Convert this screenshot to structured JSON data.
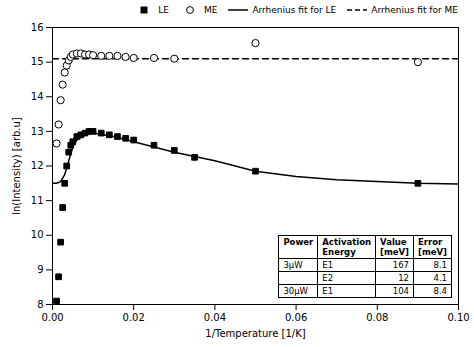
{
  "chart_data": {
    "type": "scatter",
    "xlabel": "1/Temperature [1/K]",
    "ylabel": "ln(Intensity) [arb.u]",
    "xlim": [
      0,
      0.1
    ],
    "ylim": [
      8,
      16
    ],
    "xticks": [
      {
        "value": 0,
        "label": "0.00"
      },
      {
        "value": 0.02,
        "label": "0.02"
      },
      {
        "value": 0.04,
        "label": "0.04"
      },
      {
        "value": 0.06,
        "label": "0.06"
      },
      {
        "value": 0.08,
        "label": "0.08"
      },
      {
        "value": 0.1,
        "label": "0.10"
      }
    ],
    "yticks": [
      8,
      9,
      10,
      11,
      12,
      13,
      14,
      15,
      16
    ],
    "legend": "upper right",
    "series": [
      {
        "name": "LE",
        "type": "scatter",
        "marker": "filled_square",
        "color": "black",
        "x": [
          0.001,
          0.0015,
          0.002,
          0.0025,
          0.003,
          0.0035,
          0.004,
          0.0045,
          0.005,
          0.006,
          0.007,
          0.008,
          0.009,
          0.01,
          0.012,
          0.014,
          0.016,
          0.018,
          0.02,
          0.025,
          0.03,
          0.035,
          0.05,
          0.09
        ],
        "values": [
          8.1,
          8.8,
          9.8,
          10.8,
          11.5,
          12.0,
          12.4,
          12.6,
          12.7,
          12.85,
          12.9,
          12.95,
          13.0,
          13.0,
          12.95,
          12.9,
          12.85,
          12.8,
          12.75,
          12.6,
          12.45,
          12.25,
          11.85,
          11.5
        ]
      },
      {
        "name": "ME",
        "type": "scatter",
        "marker": "open_circle",
        "color": "black",
        "x": [
          0.001,
          0.0015,
          0.002,
          0.0025,
          0.003,
          0.0035,
          0.004,
          0.0045,
          0.005,
          0.006,
          0.007,
          0.008,
          0.009,
          0.01,
          0.012,
          0.014,
          0.016,
          0.018,
          0.02,
          0.025,
          0.03,
          0.05,
          0.09
        ],
        "values": [
          12.65,
          13.2,
          13.9,
          14.35,
          14.7,
          14.9,
          15.05,
          15.15,
          15.22,
          15.25,
          15.25,
          15.22,
          15.22,
          15.2,
          15.18,
          15.18,
          15.18,
          15.15,
          15.12,
          15.12,
          15.1,
          15.55,
          15.0
        ]
      },
      {
        "name": "Arrhenius fit for LE",
        "type": "line",
        "line_style": "solid",
        "color": "black",
        "x": [
          0.0,
          0.001,
          0.002,
          0.003,
          0.004,
          0.005,
          0.006,
          0.008,
          0.01,
          0.015,
          0.02,
          0.03,
          0.04,
          0.05,
          0.06,
          0.07,
          0.08,
          0.09,
          0.1
        ],
        "values": [
          11.5,
          11.5,
          11.55,
          11.75,
          12.15,
          12.55,
          12.75,
          12.9,
          12.95,
          12.85,
          12.7,
          12.4,
          12.15,
          11.85,
          11.7,
          11.6,
          11.55,
          11.5,
          11.48
        ]
      },
      {
        "name": "Arrhenius fit for ME",
        "type": "line",
        "line_style": "dashed",
        "color": "black",
        "x": [
          0.0,
          0.1
        ],
        "values": [
          15.1,
          15.1
        ]
      }
    ],
    "table": {
      "header": [
        "Power",
        "Activation\nEnergy",
        "Value\n[meV]",
        "Error\n[meV]"
      ],
      "rows": [
        [
          "3μW",
          "E1",
          "167",
          "8.1"
        ],
        [
          null,
          "E2",
          "12",
          "4.1"
        ],
        [
          "30μW",
          "E1",
          "104",
          "8.4"
        ]
      ]
    }
  }
}
